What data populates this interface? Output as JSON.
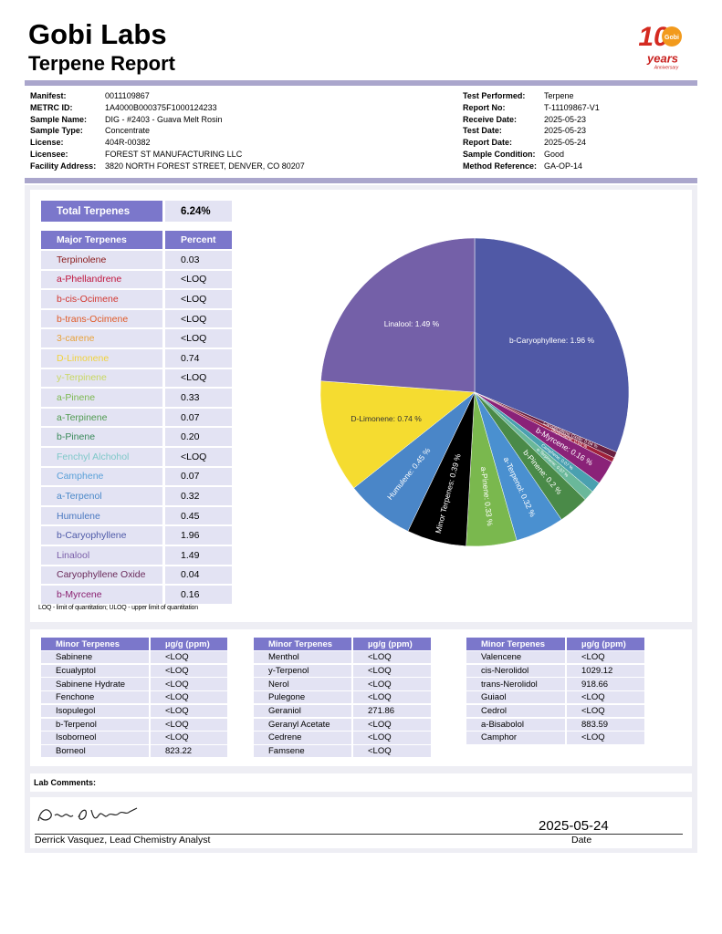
{
  "header": {
    "title": "Gobi Labs",
    "subtitle": "Terpene Report"
  },
  "logo": {
    "number": "10",
    "badge": "Gobi",
    "word": "years",
    "sub": "Anniversary"
  },
  "info_left": [
    [
      "Manifest:",
      "0011109867"
    ],
    [
      "METRC ID:",
      "1A4000B000375F1000124233"
    ],
    [
      "Sample Name:",
      "DIG - #2403 - Guava Melt Rosin"
    ],
    [
      "Sample Type:",
      "Concentrate"
    ],
    [
      "License:",
      "404R-00382"
    ],
    [
      "Licensee:",
      "FOREST ST MANUFACTURING LLC"
    ],
    [
      "Facility Address:",
      "3820 NORTH FOREST STREET, DENVER, CO 80207"
    ]
  ],
  "info_right": [
    [
      "Test Performed:",
      "Terpene"
    ],
    [
      "Report No:",
      "T-11109867-V1"
    ],
    [
      "Receive Date:",
      "2025-05-23"
    ],
    [
      "Test Date:",
      "2025-05-23"
    ],
    [
      "Report Date:",
      "2025-05-24"
    ],
    [
      "Sample Condition:",
      "Good"
    ],
    [
      "Method Reference:",
      "GA-OP-14"
    ]
  ],
  "total": {
    "label": "Total Terpenes",
    "value": "6.24%"
  },
  "major": {
    "headers": [
      "Major Terpenes",
      "Percent"
    ],
    "rows": [
      [
        "Terpinolene",
        "0.03"
      ],
      [
        "a-Phellandrene",
        "<LOQ"
      ],
      [
        "b-cis-Ocimene",
        "<LOQ"
      ],
      [
        "b-trans-Ocimene",
        "<LOQ"
      ],
      [
        "3-carene",
        "<LOQ"
      ],
      [
        "D-Limonene",
        "0.74"
      ],
      [
        "y-Terpinene",
        "<LOQ"
      ],
      [
        "a-Pinene",
        "0.33"
      ],
      [
        "a-Terpinene",
        "0.07"
      ],
      [
        "b-Pinene",
        "0.20"
      ],
      [
        "Fenchyl Alchohol",
        "<LOQ"
      ],
      [
        "Camphene",
        "0.07"
      ],
      [
        "a-Terpenol",
        "0.32"
      ],
      [
        "Humulene",
        "0.45"
      ],
      [
        "b-Caryophyllene",
        "1.96"
      ],
      [
        "Linalool",
        "1.49"
      ],
      [
        "Caryophyllene Oxide",
        "0.04"
      ],
      [
        "b-Myrcene",
        "0.16"
      ]
    ],
    "colors": [
      "#8b1a1a",
      "#c0143c",
      "#d2362f",
      "#e05a28",
      "#e8a23a",
      "#f0d23c",
      "#c8d860",
      "#7cb850",
      "#4e9a4e",
      "#3a8a5a",
      "#7ec8c8",
      "#5aa0d8",
      "#4a88c8",
      "#4a78c0",
      "#4e5aa8",
      "#7a5ea8",
      "#6a2a5a",
      "#8a2070"
    ]
  },
  "note": "LOQ - limit of quantitation; ULOQ - upper limit of quantitation",
  "chart_data": {
    "type": "pie",
    "categories": [
      "b-Caryophyllene",
      "Caryophyllene Oxide",
      "Terpinolene",
      "b-Myrcene",
      "Camphene",
      "a-Terpinene",
      "b-Pinene",
      "a-Terpenol",
      "a-Pinene",
      "Minor Terpenes",
      "Humulene",
      "D-Limonene",
      "Linalool"
    ],
    "values": [
      1.96,
      0.04,
      0.03,
      0.16,
      0.07,
      0.07,
      0.2,
      0.32,
      0.33,
      0.39,
      0.45,
      0.74,
      1.49
    ],
    "labels": [
      "b-Caryophyllene: 1.96 %",
      "Caryophyllene Oxide: 0.04 %",
      "Terpinolene: 0.03 %",
      "b-Myrcene: 0.16 %",
      "Camphene: 0.07 %",
      "a-Terpinene: 0.07 %",
      "b-Pinene: 0.2 %",
      "a-Terpenol: 0.32 %",
      "a-Pinene: 0.33 %",
      "Minor Terpenes: 0.39 %",
      "Humulene: 0.45 %",
      "D-Limonene: 0.74 %",
      "Linalool: 1.49 %"
    ],
    "colors": [
      "#5059a6",
      "#6a2040",
      "#a0203a",
      "#8a2278",
      "#4aa0b0",
      "#6ab89a",
      "#4a8a48",
      "#4a90d0",
      "#7ab84e",
      "#000000",
      "#4a86c8",
      "#f5dc30",
      "#7460a8"
    ]
  },
  "minor": [
    {
      "headers": [
        "Minor Terpenes",
        "µg/g (ppm)"
      ],
      "rows": [
        [
          "Sabinene",
          "<LOQ"
        ],
        [
          "Ecualyptol",
          "<LOQ"
        ],
        [
          "Sabinene Hydrate",
          "<LOQ"
        ],
        [
          "Fenchone",
          "<LOQ"
        ],
        [
          "Isopulegol",
          "<LOQ"
        ],
        [
          "b-Terpenol",
          "<LOQ"
        ],
        [
          "Isoborneol",
          "<LOQ"
        ],
        [
          "Borneol",
          "823.22"
        ]
      ]
    },
    {
      "headers": [
        "Minor Terpenes",
        "µg/g (ppm)"
      ],
      "rows": [
        [
          "Menthol",
          "<LOQ"
        ],
        [
          "y-Terpenol",
          "<LOQ"
        ],
        [
          "Nerol",
          "<LOQ"
        ],
        [
          "Pulegone",
          "<LOQ"
        ],
        [
          "Geraniol",
          "271.86"
        ],
        [
          "Geranyl Acetate",
          "<LOQ"
        ],
        [
          "Cedrene",
          "<LOQ"
        ],
        [
          "Famsene",
          "<LOQ"
        ]
      ]
    },
    {
      "headers": [
        "Minor Terpenes",
        "µg/g (ppm)"
      ],
      "rows": [
        [
          "Valencene",
          "<LOQ"
        ],
        [
          "cis-Nerolidol",
          "1029.12"
        ],
        [
          "trans-Nerolidol",
          "918.66"
        ],
        [
          "Guiaol",
          "<LOQ"
        ],
        [
          "Cedrol",
          "<LOQ"
        ],
        [
          "a-Bisabolol",
          "883.59"
        ],
        [
          "Camphor",
          "<LOQ"
        ]
      ]
    }
  ],
  "comments": {
    "label": "Lab Comments:"
  },
  "signature": {
    "name": "Derrick Vasquez, Lead Chemistry Analyst",
    "date": "2025-05-24",
    "date_label": "Date"
  }
}
